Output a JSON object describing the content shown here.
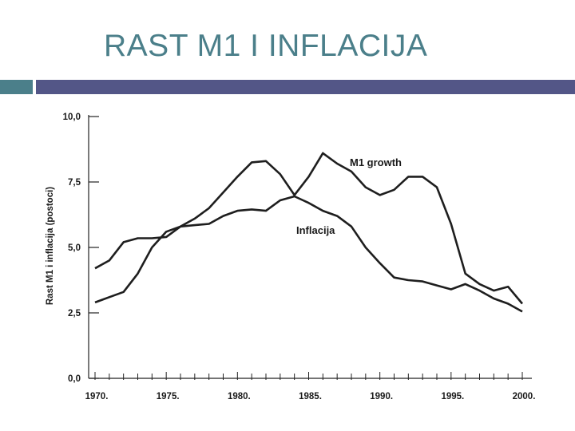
{
  "slide": {
    "title": "RAST M1 I INFLACIJA",
    "accent_left_color": "#4b7f8a",
    "accent_right_color": "#535687",
    "title_color": "#4b7f8a"
  },
  "chart_data": {
    "type": "line",
    "title": "",
    "xlabel": "",
    "ylabel": "Rast M1 i inflacija (postoci)",
    "xlim": [
      1970,
      2000
    ],
    "ylim": [
      0,
      10
    ],
    "grid": false,
    "x_ticks": [
      1970,
      1975,
      1980,
      1985,
      1990,
      1995,
      2000
    ],
    "x_tick_labels": [
      "1970.",
      "1975.",
      "1980.",
      "1985.",
      "1990.",
      "1995.",
      "2000."
    ],
    "y_ticks": [
      0,
      2.5,
      5,
      7.5,
      10
    ],
    "y_tick_labels": [
      "0,0",
      "2,5",
      "5,0",
      "7,5",
      "10,0"
    ],
    "series": [
      {
        "name": "M1 growth",
        "x": [
          1970,
          1971,
          1972,
          1973,
          1974,
          1975,
          1976,
          1977,
          1978,
          1979,
          1980,
          1981,
          1982,
          1983,
          1984,
          1985,
          1986,
          1987,
          1988,
          1989,
          1990,
          1991,
          1992,
          1993,
          1994,
          1995,
          1996,
          1997,
          1998,
          1999,
          2000
        ],
        "values": [
          2.9,
          3.1,
          3.3,
          4.0,
          5.0,
          5.6,
          5.8,
          6.1,
          6.5,
          7.1,
          7.7,
          8.25,
          8.3,
          7.8,
          7.0,
          7.7,
          8.6,
          8.2,
          7.9,
          7.3,
          7.0,
          7.2,
          7.7,
          7.7,
          7.3,
          5.9,
          4.0,
          3.6,
          3.35,
          3.5,
          2.85
        ]
      },
      {
        "name": "Inflacija",
        "x": [
          1970,
          1971,
          1972,
          1973,
          1974,
          1975,
          1976,
          1977,
          1978,
          1979,
          1980,
          1981,
          1982,
          1983,
          1984,
          1985,
          1986,
          1987,
          1988,
          1989,
          1990,
          1991,
          1992,
          1993,
          1994,
          1995,
          1996,
          1997,
          1998,
          1999,
          2000
        ],
        "values": [
          4.2,
          4.5,
          5.2,
          5.35,
          5.35,
          5.4,
          5.8,
          5.85,
          5.9,
          6.2,
          6.4,
          6.45,
          6.4,
          6.8,
          6.95,
          6.7,
          6.4,
          6.2,
          5.8,
          5.0,
          4.4,
          3.85,
          3.75,
          3.7,
          3.55,
          3.4,
          3.6,
          3.35,
          3.05,
          2.85,
          2.55
        ]
      }
    ],
    "annotations": [
      {
        "text": "M1 growth",
        "series": "M1 growth"
      },
      {
        "text": "Inflacija",
        "series": "Inflacija"
      }
    ]
  }
}
